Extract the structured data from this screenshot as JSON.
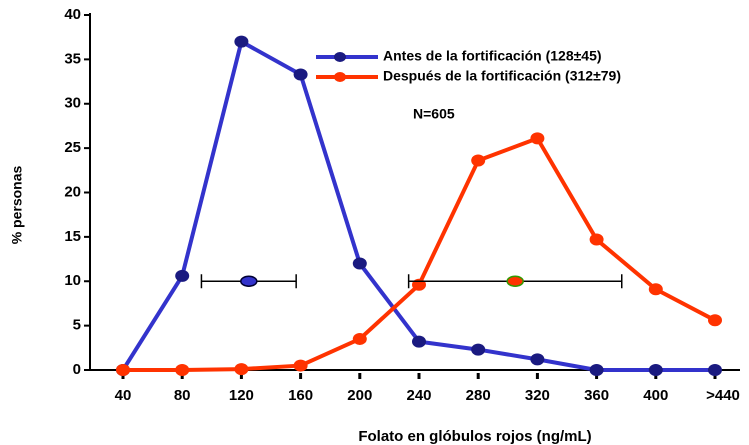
{
  "chart_data": {
    "type": "line",
    "categories": [
      "40",
      "80",
      "120",
      "160",
      "200",
      "240",
      "280",
      "320",
      "360",
      "400",
      ">440"
    ],
    "series": [
      {
        "name": "Antes de la fortificación (128±45)",
        "color": "#3333cc",
        "marker_color": "#1a1a80",
        "values": [
          0,
          10.6,
          37,
          33.3,
          12,
          3.2,
          2.3,
          1.2,
          0,
          0,
          0
        ]
      },
      {
        "name": "Después de la fortificación  (312±79)",
        "color": "#ff3300",
        "marker_color": "#ff3300",
        "values": [
          0,
          0,
          0.1,
          0.5,
          3.5,
          9.6,
          23.6,
          26.1,
          14.7,
          9.1,
          5.6
        ]
      }
    ],
    "error_bars": [
      {
        "x": 125,
        "y": 10,
        "error": 32,
        "color": "#3333cc",
        "edge": "#000033"
      },
      {
        "x": 305,
        "y": 10,
        "error": 72,
        "color": "#ff3300",
        "edge": "#339900"
      }
    ],
    "annotation": "N=605",
    "xlabel": "Folato en glóbulos rojos (ng/mL)",
    "ylabel": "% personas",
    "xlim": [
      40,
      440
    ],
    "ylim": [
      0,
      40
    ],
    "yticks": [
      0,
      5,
      10,
      15,
      20,
      25,
      30,
      35,
      40
    ]
  }
}
